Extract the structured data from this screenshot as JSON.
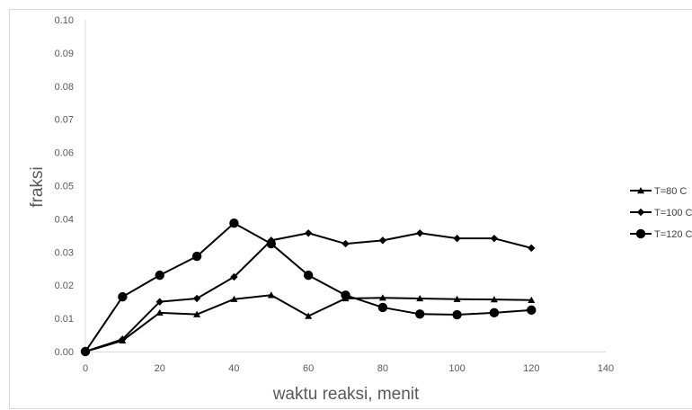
{
  "chart_data": {
    "type": "line",
    "title": "",
    "xlabel": "waktu reaksi, menit",
    "ylabel": "fraksi",
    "xlim": [
      0,
      140
    ],
    "ylim": [
      0,
      0.1
    ],
    "xticks": [
      0,
      20,
      40,
      60,
      80,
      100,
      120,
      140
    ],
    "xtick_labels": [
      "0",
      "20",
      "40",
      "60",
      "80",
      "100",
      "120",
      "140"
    ],
    "yticks": [
      0,
      0.01,
      0.02,
      0.03,
      0.04,
      0.05,
      0.06,
      0.07,
      0.08,
      0.09,
      0.1
    ],
    "ytick_labels": [
      "0.00",
      "0.01",
      "0.02",
      "0.03",
      "0.04",
      "0.05",
      "0.06",
      "0.07",
      "0.08",
      "0.09",
      "0.10"
    ],
    "grid": false,
    "legend_position": "right",
    "x": [
      0,
      10,
      20,
      30,
      40,
      50,
      60,
      70,
      80,
      90,
      100,
      110,
      120
    ],
    "series": [
      {
        "name": "T=80 C",
        "marker": "triangle",
        "color": "#000000",
        "values": [
          0.0,
          0.0033,
          0.0117,
          0.0112,
          0.0158,
          0.017,
          0.0107,
          0.016,
          0.0162,
          0.016,
          0.0158,
          0.0157,
          0.0155
        ]
      },
      {
        "name": "T=100 C",
        "marker": "diamond",
        "color": "#000000",
        "values": [
          0.0,
          0.0037,
          0.015,
          0.016,
          0.0225,
          0.0335,
          0.0357,
          0.0325,
          0.0335,
          0.0357,
          0.0341,
          0.0341,
          0.0312
        ]
      },
      {
        "name": "T=120 C",
        "marker": "circle",
        "color": "#000000",
        "values": [
          0.0,
          0.0165,
          0.023,
          0.0287,
          0.0387,
          0.0325,
          0.023,
          0.017,
          0.0133,
          0.0113,
          0.0111,
          0.0117,
          0.0125
        ]
      }
    ]
  }
}
